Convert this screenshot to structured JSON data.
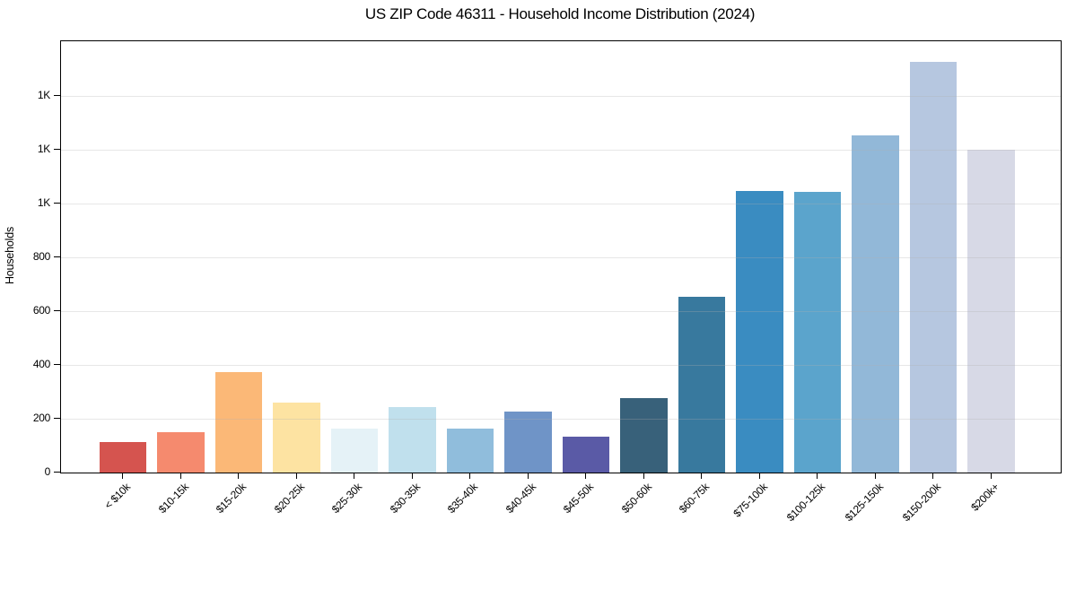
{
  "chart_data": {
    "type": "bar",
    "title": "US ZIP Code 46311 - Household Income Distribution (2024)",
    "xlabel": "",
    "ylabel": "Households",
    "categories": [
      "< $10k",
      "$10-15k",
      "$15-20k",
      "$20-25k",
      "$25-30k",
      "$30-35k",
      "$35-40k",
      "$40-45k",
      "$45-50k",
      "$50-60k",
      "$60-75k",
      "$75-100k",
      "$100-125k",
      "$125-150k",
      "$150-200k",
      "$200k+"
    ],
    "values": [
      114,
      149,
      372,
      260,
      163,
      242,
      165,
      228,
      135,
      276,
      653,
      1048,
      1043,
      1253,
      1528,
      1201
    ],
    "bar_colors": [
      "#d5544f",
      "#f58a6e",
      "#fbb877",
      "#fde3a2",
      "#e5f2f7",
      "#c0e0ed",
      "#90bddc",
      "#6f94c7",
      "#5a5aa6",
      "#38617a",
      "#38799e",
      "#3a8cc1",
      "#5ba4cc",
      "#92b8d8",
      "#b6c7e0",
      "#d7d9e6"
    ],
    "ylim": [
      0,
      1603
    ],
    "yticks": {
      "values": [
        0,
        200,
        400,
        600,
        800,
        1000,
        1200,
        1400
      ],
      "labels": [
        "0",
        "200",
        "400",
        "600",
        "800",
        "1K",
        "1K",
        "1K"
      ]
    },
    "grid": "horizontal gridlines at y-ticks, drawn above bars",
    "grid_color": "#b0b0b0",
    "legend": "none",
    "axis_color": "#000000",
    "background_color": "#ffffff"
  }
}
